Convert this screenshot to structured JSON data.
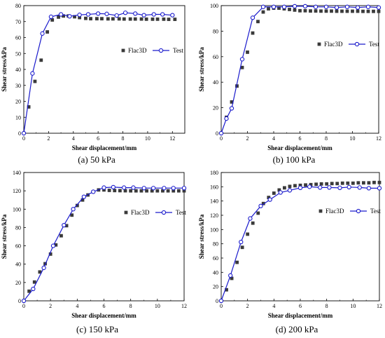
{
  "figure": {
    "colors": {
      "flac3d": "#3a3a3a",
      "test": "#1a1acc",
      "axis": "#000000"
    },
    "legend": {
      "flac3d_label": "Flac3D",
      "test_label": "Test"
    }
  },
  "chart_data": [
    {
      "type": "scatter",
      "panel": "a",
      "caption_letter": "(a)",
      "caption_text": " 50 kPa",
      "xlabel": "Shear displacement/mm",
      "ylabel": "Shear stress/kPa",
      "xlim": [
        0,
        13
      ],
      "ylim": [
        0,
        80
      ],
      "xticks": [
        0,
        2,
        4,
        6,
        8,
        10,
        12
      ],
      "yticks": [
        0,
        10,
        20,
        30,
        40,
        50,
        60,
        70,
        80
      ],
      "legend_position": "right-middle",
      "series": [
        {
          "name": "Flac3D",
          "marker": "square",
          "x": [
            0.4,
            0.9,
            1.4,
            1.9,
            2.3,
            2.8,
            3.2,
            3.6,
            4.1,
            4.5,
            5.0,
            5.4,
            5.9,
            6.3,
            6.8,
            7.2,
            7.7,
            8.1,
            8.6,
            9.0,
            9.5,
            9.9,
            10.4,
            10.8,
            11.3,
            11.7,
            12.2
          ],
          "y": [
            16.5,
            32.5,
            45.8,
            63.5,
            71.0,
            72.8,
            73.5,
            73.5,
            73.0,
            72.5,
            72.0,
            71.8,
            71.8,
            71.8,
            71.7,
            71.7,
            71.7,
            71.6,
            71.6,
            71.6,
            71.6,
            71.5,
            71.5,
            71.5,
            71.5,
            71.4,
            71.4
          ]
        },
        {
          "name": "Test",
          "marker": "circle",
          "x": [
            0,
            0.7,
            1.5,
            2.2,
            3.0,
            3.7,
            4.5,
            5.2,
            6.0,
            6.7,
            7.5,
            8.2,
            9.0,
            9.7,
            10.5,
            11.2,
            12.0
          ],
          "y": [
            0,
            37.5,
            62.5,
            73.0,
            74.5,
            73.3,
            74.2,
            74.5,
            75.0,
            74.8,
            73.8,
            75.5,
            75.0,
            74.0,
            74.5,
            74.5,
            74.0
          ]
        }
      ]
    },
    {
      "type": "scatter",
      "panel": "b",
      "caption_letter": "(b)",
      "caption_text": " 100 kPa",
      "xlabel": "Shear displacement/mm",
      "ylabel": "Shear stress/kPa",
      "xlim": [
        0,
        12
      ],
      "ylim": [
        0,
        100
      ],
      "xticks": [
        0,
        2,
        4,
        6,
        8,
        10,
        12
      ],
      "yticks": [
        0,
        20,
        40,
        60,
        80,
        100
      ],
      "legend_position": "right-middle",
      "series": [
        {
          "name": "Flac3D",
          "marker": "square",
          "x": [
            0.4,
            0.8,
            1.2,
            1.6,
            2.0,
            2.4,
            2.8,
            3.2,
            3.6,
            4.0,
            4.4,
            4.8,
            5.2,
            5.6,
            6.0,
            6.4,
            6.8,
            7.2,
            7.6,
            8.0,
            8.4,
            8.8,
            9.2,
            9.6,
            10.0,
            10.4,
            10.8,
            11.2,
            11.6,
            12.0
          ],
          "y": [
            12.5,
            24.5,
            37.0,
            51.5,
            63.5,
            78.5,
            87.5,
            95.0,
            97.5,
            98.0,
            98.0,
            97.5,
            97.0,
            96.5,
            96.0,
            96.0,
            95.8,
            95.8,
            95.7,
            95.7,
            95.7,
            95.6,
            95.6,
            95.6,
            95.6,
            95.6,
            95.5,
            95.5,
            95.5,
            95.5
          ]
        },
        {
          "name": "Test",
          "marker": "circle",
          "x": [
            0,
            0.4,
            0.8,
            1.6,
            2.4,
            3.2,
            4.0,
            4.8,
            5.6,
            6.4,
            7.2,
            8.0,
            8.8,
            9.6,
            10.4,
            11.2,
            12.0
          ],
          "y": [
            0,
            11.5,
            19.5,
            58.0,
            90.5,
            99.0,
            99.0,
            99.0,
            99.5,
            99.5,
            99.0,
            99.0,
            98.5,
            99.0,
            98.5,
            99.0,
            98.5
          ]
        }
      ]
    },
    {
      "type": "scatter",
      "panel": "c",
      "caption_letter": "(c)",
      "caption_text": " 150 kPa",
      "xlabel": "Shear displacement/mm",
      "ylabel": "Shear stress/kPa",
      "xlim": [
        0,
        12
      ],
      "ylim": [
        0,
        140
      ],
      "xticks": [
        0,
        2,
        4,
        6,
        8,
        10,
        12
      ],
      "yticks": [
        0,
        20,
        40,
        60,
        80,
        100,
        120,
        140
      ],
      "legend_position": "right-middle",
      "series": [
        {
          "name": "Flac3D",
          "marker": "square",
          "x": [
            0.4,
            0.8,
            1.2,
            1.6,
            2.0,
            2.4,
            2.8,
            3.2,
            3.6,
            4.0,
            4.4,
            4.8,
            5.2,
            5.6,
            6.0,
            6.4,
            6.8,
            7.2,
            7.6,
            8.0,
            8.4,
            8.8,
            9.2,
            9.6,
            10.0,
            10.4,
            10.8,
            11.2,
            11.6,
            12.0
          ],
          "y": [
            10.5,
            20.5,
            31.5,
            40.5,
            51.0,
            61.0,
            71.0,
            82.0,
            93.5,
            104.0,
            110.0,
            115.5,
            119.0,
            121.0,
            121.0,
            120.5,
            120.3,
            120.2,
            120.1,
            120.0,
            120.0,
            120.0,
            120.0,
            120.0,
            120.0,
            120.0,
            120.0,
            120.0,
            120.0,
            120.0
          ]
        },
        {
          "name": "Test",
          "marker": "circle",
          "x": [
            0,
            0.7,
            1.5,
            2.2,
            3.0,
            3.7,
            4.5,
            5.2,
            6.0,
            6.7,
            7.5,
            8.2,
            9.0,
            9.7,
            10.5,
            11.2,
            12.0
          ],
          "y": [
            0,
            13.0,
            36.0,
            60.0,
            82.5,
            100.0,
            113.5,
            119.0,
            123.5,
            124.0,
            123.5,
            123.5,
            123.0,
            123.0,
            123.0,
            123.0,
            123.0
          ]
        }
      ]
    },
    {
      "type": "scatter",
      "panel": "d",
      "caption_letter": "(d)",
      "caption_text": " 200 kPa",
      "xlabel": "Shear displacement/mm",
      "ylabel": "Shear stress/kPa",
      "xlim": [
        0,
        12
      ],
      "ylim": [
        0,
        180
      ],
      "xticks": [
        0,
        2,
        4,
        6,
        8,
        10,
        12
      ],
      "yticks": [
        0,
        20,
        40,
        60,
        80,
        100,
        120,
        140,
        160,
        180
      ],
      "legend_position": "right-middle",
      "series": [
        {
          "name": "Flac3D",
          "marker": "square",
          "x": [
            0.4,
            0.8,
            1.2,
            1.6,
            2.0,
            2.4,
            2.8,
            3.2,
            3.6,
            4.0,
            4.4,
            4.8,
            5.2,
            5.6,
            6.0,
            6.4,
            6.8,
            7.2,
            7.6,
            8.0,
            8.4,
            8.8,
            9.2,
            9.6,
            10.0,
            10.4,
            10.8,
            11.2,
            11.6,
            12.0
          ],
          "y": [
            15.5,
            31.5,
            54.0,
            75.0,
            93.5,
            109.0,
            123.0,
            136.5,
            145.0,
            151.0,
            155.5,
            158.5,
            160.5,
            161.5,
            162.0,
            162.5,
            163.0,
            163.5,
            164.0,
            164.0,
            164.5,
            164.5,
            165.0,
            165.0,
            165.0,
            165.5,
            165.5,
            165.5,
            166.0,
            166.0
          ]
        },
        {
          "name": "Test",
          "marker": "circle",
          "x": [
            0,
            0.7,
            1.5,
            2.2,
            3.0,
            3.7,
            4.5,
            5.2,
            6.0,
            6.7,
            7.5,
            8.2,
            9.0,
            9.7,
            10.5,
            11.2,
            12.0
          ],
          "y": [
            0,
            35.5,
            82.5,
            115.5,
            133.0,
            142.0,
            152.0,
            155.0,
            158.5,
            160.0,
            159.0,
            159.0,
            158.5,
            159.5,
            159.0,
            158.0,
            158.0
          ]
        }
      ]
    }
  ]
}
